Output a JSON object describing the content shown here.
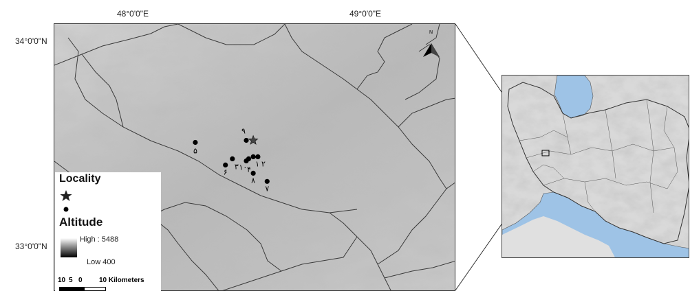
{
  "coords": {
    "lon_48": "48°0'0\"E",
    "lon_49": "49°0'0\"E",
    "lat_34": "34°0'0\"N",
    "lat_33": "33°0'0\"N"
  },
  "north_arrow": {
    "label": "N",
    "icon": "north-arrow-icon"
  },
  "points": [
    {
      "label": "۵",
      "lon": 48.24,
      "lat": 33.51
    },
    {
      "label": "۶",
      "lon": 48.37,
      "lat": 33.4
    },
    {
      "label": "۳",
      "lon": 48.4,
      "lat": 33.43
    },
    {
      "label": "۴",
      "lon": 48.46,
      "lat": 33.42
    },
    {
      "label": "۱۰",
      "lon": 48.47,
      "lat": 33.43
    },
    {
      "label": "۹",
      "lon": 48.46,
      "lat": 33.52
    },
    {
      "label": "۱",
      "lon": 48.49,
      "lat": 33.44
    },
    {
      "label": "۲",
      "lon": 48.51,
      "lat": 33.44
    },
    {
      "label": "۸",
      "lon": 48.49,
      "lat": 33.36
    },
    {
      "label": "۷",
      "lon": 48.55,
      "lat": 33.32
    }
  ],
  "locality_star": {
    "lon": 48.49,
    "lat": 33.52
  },
  "legend": {
    "locality_title": "Locality",
    "star_icon": "star-icon",
    "dot_icon": "dot-icon",
    "altitude_title": "Altitude",
    "high_label": "High : 5488",
    "low_label": "Low 400"
  },
  "scale_bar": {
    "tick_10": "10",
    "tick_5": "5",
    "tick_0": "0",
    "end_label": "10 Kilometers"
  },
  "colors": {
    "relief_light": "#dcdcdc",
    "relief_dark": "#8a8a8a",
    "water": "#9ec3e6",
    "boundary": "#3a3a3a"
  }
}
